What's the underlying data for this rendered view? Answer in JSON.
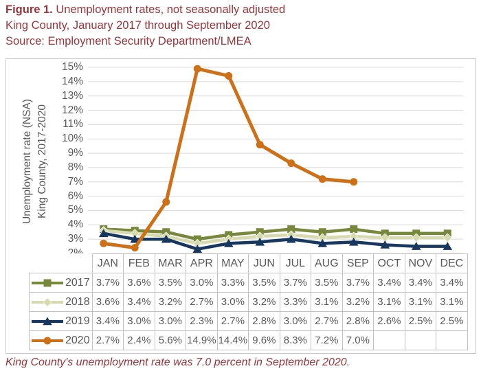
{
  "title": {
    "figure_label": "Figure 1.",
    "line1_rest": " Unemployment rates, not seasonally adjusted",
    "line2": "King County, January 2017 through September 2020",
    "line3": "Source: Employment Security Department/LMEA"
  },
  "footer": {
    "note": "King County's unemployment rate was 7.0 percent in September 2020."
  },
  "colors": {
    "title_text": "#9B3339",
    "footer_text": "#9B3339",
    "axis_text": "#595959",
    "grid_line": "#D9D9D9",
    "panel_border": "#C9C9C9",
    "table_border": "#C1C1C1",
    "series_2017": "#77873B",
    "series_2018": "#D6DAAE",
    "series_2019": "#17375E",
    "series_2020": "#CE7017"
  },
  "chart_data": {
    "type": "line",
    "title": "",
    "categories": [
      "JAN",
      "FEB",
      "MAR",
      "APR",
      "MAY",
      "JUN",
      "JUL",
      "AUG",
      "SEP",
      "OCT",
      "NOV",
      "DEC"
    ],
    "series": [
      {
        "name": "2017",
        "color": "#77873B",
        "marker": "square",
        "line_width": 4.5,
        "values": [
          3.7,
          3.6,
          3.5,
          3.0,
          3.3,
          3.5,
          3.7,
          3.5,
          3.7,
          3.4,
          3.4,
          3.4
        ]
      },
      {
        "name": "2018",
        "color": "#D6DAAE",
        "marker": "diamond",
        "line_width": 4.5,
        "values": [
          3.6,
          3.4,
          3.2,
          2.7,
          3.0,
          3.2,
          3.3,
          3.1,
          3.2,
          3.1,
          3.1,
          3.1
        ]
      },
      {
        "name": "2019",
        "color": "#17375E",
        "marker": "triangle",
        "line_width": 4.5,
        "values": [
          3.4,
          3.0,
          3.0,
          2.3,
          2.7,
          2.8,
          3.0,
          2.7,
          2.8,
          2.6,
          2.5,
          2.5
        ]
      },
      {
        "name": "2020",
        "color": "#CE7017",
        "marker": "circle",
        "line_width": 5,
        "values": [
          2.7,
          2.4,
          5.6,
          14.9,
          14.4,
          9.6,
          8.3,
          7.2,
          7.0,
          null,
          null,
          null
        ]
      }
    ],
    "y_axis": {
      "min": 2,
      "max": 15,
      "step": 1,
      "tick_format": "percent",
      "title_line1": "Unemployment rate (NSA)",
      "title_line2": "King County, 2017-2020"
    },
    "grid": "horizontal",
    "legend_position": "table-left-column"
  },
  "table": {
    "columns": [
      "JAN",
      "FEB",
      "MAR",
      "APR",
      "MAY",
      "JUN",
      "JUL",
      "AUG",
      "SEP",
      "OCT",
      "NOV",
      "DEC"
    ],
    "rows": [
      {
        "year": "2017",
        "cells": [
          "3.7%",
          "3.6%",
          "3.5%",
          "3.0%",
          "3.3%",
          "3.5%",
          "3.7%",
          "3.5%",
          "3.7%",
          "3.4%",
          "3.4%",
          "3.4%"
        ]
      },
      {
        "year": "2018",
        "cells": [
          "3.6%",
          "3.4%",
          "3.2%",
          "2.7%",
          "3.0%",
          "3.2%",
          "3.3%",
          "3.1%",
          "3.2%",
          "3.1%",
          "3.1%",
          "3.1%"
        ]
      },
      {
        "year": "2019",
        "cells": [
          "3.4%",
          "3.0%",
          "3.0%",
          "2.3%",
          "2.7%",
          "2.8%",
          "3.0%",
          "2.7%",
          "2.8%",
          "2.6%",
          "2.5%",
          "2.5%"
        ]
      },
      {
        "year": "2020",
        "cells": [
          "2.7%",
          "2.4%",
          "5.6%",
          "14.9%",
          "14.4%",
          "9.6%",
          "8.3%",
          "7.2%",
          "7.0%",
          "",
          "",
          ""
        ]
      }
    ]
  }
}
